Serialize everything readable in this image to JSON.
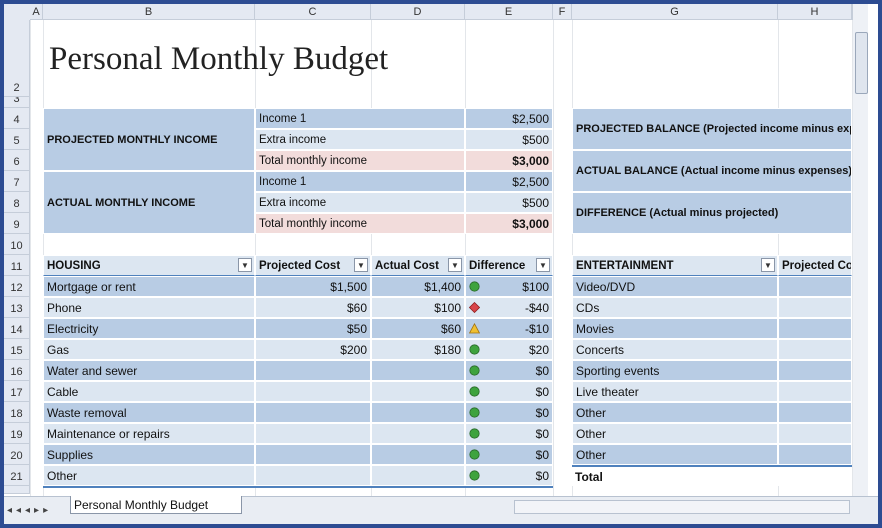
{
  "column_headers": [
    "A",
    "B",
    "C",
    "D",
    "E",
    "F",
    "G",
    "H"
  ],
  "row_headers": [
    2,
    3,
    4,
    5,
    6,
    7,
    8,
    9,
    10,
    11,
    12,
    13,
    14,
    15,
    16,
    17,
    18,
    19,
    20,
    21
  ],
  "title": "Personal Monthly Budget",
  "projected_income": {
    "label": "PROJECTED MONTHLY INCOME",
    "items": [
      [
        "Income 1",
        "$2,500"
      ],
      [
        "Extra income",
        "$500"
      ],
      [
        "Total monthly income",
        "$3,000"
      ]
    ]
  },
  "actual_income": {
    "label": "ACTUAL MONTHLY INCOME",
    "items": [
      [
        "Income 1",
        "$2,500"
      ],
      [
        "Extra income",
        "$500"
      ],
      [
        "Total monthly income",
        "$3,000"
      ]
    ]
  },
  "balances": [
    "PROJECTED BALANCE (Projected income minus exp",
    "ACTUAL BALANCE (Actual income minus expenses)",
    "DIFFERENCE (Actual minus projected)"
  ],
  "housing": {
    "headers": [
      "HOUSING",
      "Projected Cost",
      "Actual Cost",
      "Difference"
    ],
    "rows": [
      {
        "item": "Mortgage or rent",
        "projected": "$1,500",
        "actual": "$1,400",
        "difference": "$100",
        "status": "circle"
      },
      {
        "item": "Phone",
        "projected": "$60",
        "actual": "$100",
        "difference": "-$40",
        "status": "diamond"
      },
      {
        "item": "Electricity",
        "projected": "$50",
        "actual": "$60",
        "difference": "-$10",
        "status": "triangle"
      },
      {
        "item": "Gas",
        "projected": "$200",
        "actual": "$180",
        "difference": "$20",
        "status": "circle"
      },
      {
        "item": "Water and sewer",
        "difference": "$0",
        "status": "circle"
      },
      {
        "item": "Cable",
        "difference": "$0",
        "status": "circle"
      },
      {
        "item": "Waste removal",
        "difference": "$0",
        "status": "circle"
      },
      {
        "item": "Maintenance or repairs",
        "difference": "$0",
        "status": "circle"
      },
      {
        "item": "Supplies",
        "difference": "$0",
        "status": "circle"
      },
      {
        "item": "Other",
        "difference": "$0",
        "status": "circle"
      }
    ]
  },
  "status_colors": {
    "circle": "#3ea33e",
    "diamond": "#d9454a",
    "triangle": "#f0c030"
  },
  "entertainment": {
    "headers": [
      "ENTERTAINMENT",
      "Projected Co"
    ],
    "items": [
      "Video/DVD",
      "CDs",
      "Movies",
      "Concerts",
      "Sporting events",
      "Live theater",
      "Other",
      "Other",
      "Other"
    ],
    "total": "Total"
  },
  "sheet_tab": "Personal Monthly Budget"
}
